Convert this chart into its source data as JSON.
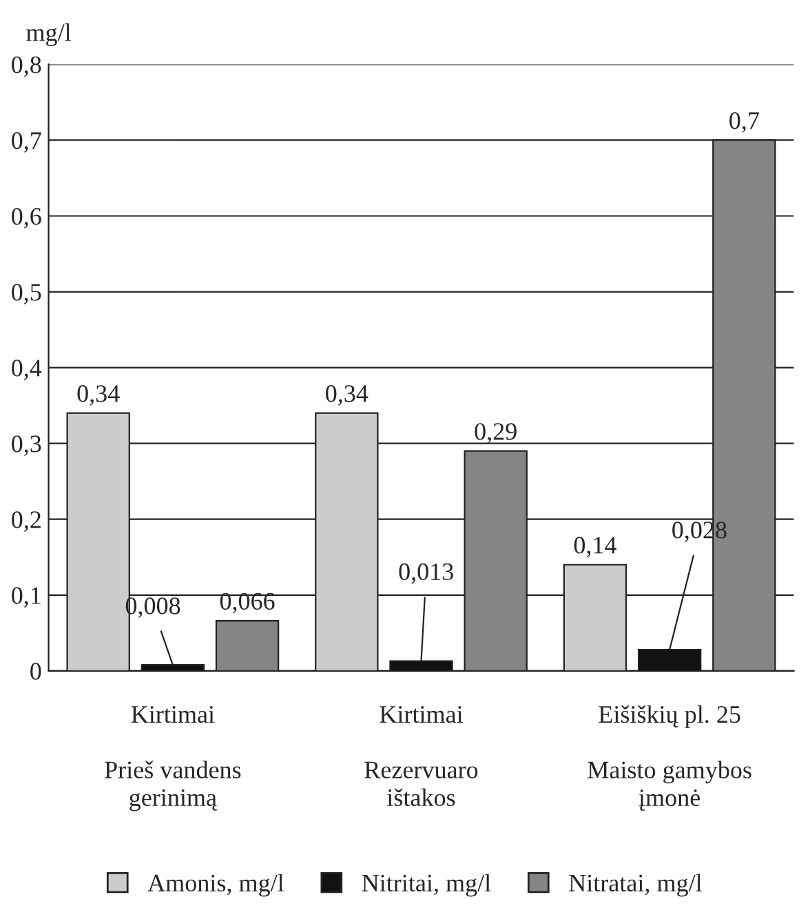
{
  "chart_data": {
    "type": "bar",
    "ylabel": "mg/l",
    "categories": [
      "Kirtimai\n\nPrieš vandens\ngerinimą",
      "Kirtimai\n\nRezervuaro\ništakos",
      "Eišiškių pl. 25\n\nMaisto gamybos\nįmonė"
    ],
    "series": [
      {
        "name": "Amonis, mg/l",
        "color": "#cccccc",
        "values": [
          0.34,
          0.34,
          0.14
        ],
        "value_labels": [
          "0,34",
          "0,34",
          "0,14"
        ]
      },
      {
        "name": "Nitritai, mg/l",
        "color": "#111111",
        "values": [
          0.008,
          0.013,
          0.028
        ],
        "value_labels": [
          "0,008",
          "0,013",
          "0,028"
        ]
      },
      {
        "name": "Nitratai, mg/l",
        "color": "#858585",
        "values": [
          0.066,
          0.29,
          0.7
        ],
        "value_labels": [
          "0,066",
          "0,29",
          "0,7"
        ]
      }
    ],
    "ylim": [
      0,
      0.8
    ],
    "yticks": [
      0,
      {
        "value": 0.1,
        "label": "0,1"
      },
      {
        "value": 0.2,
        "label": "0,2"
      },
      {
        "value": 0.3,
        "label": "0,3"
      },
      {
        "value": 0.4,
        "label": "0,4"
      },
      {
        "value": 0.5,
        "label": "0,5"
      },
      {
        "value": 0.6,
        "label": "0,6"
      },
      {
        "value": 0.7,
        "label": "0,7"
      },
      {
        "value": 0.8,
        "label": "0,8"
      }
    ],
    "grid": "y",
    "legend": "bottom"
  }
}
